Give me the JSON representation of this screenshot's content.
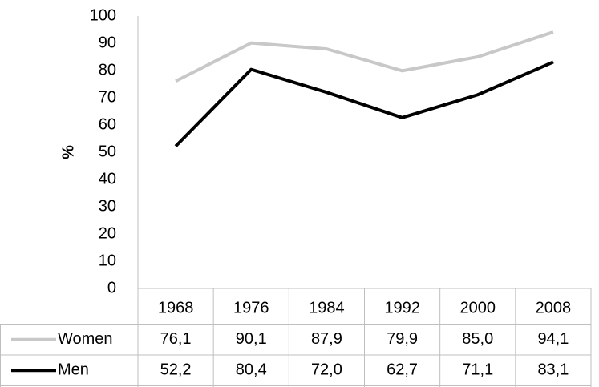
{
  "chart_data": {
    "type": "line",
    "ylabel": "%",
    "categories": [
      "1968",
      "1976",
      "1984",
      "1992",
      "2000",
      "2008"
    ],
    "series": [
      {
        "name": "Women",
        "color": "#c8c8c8",
        "values": [
          76.1,
          90.1,
          87.9,
          79.9,
          85.0,
          94.1
        ],
        "value_labels": [
          "76,1",
          "90,1",
          "87,9",
          "79,9",
          "85,0",
          "94,1"
        ]
      },
      {
        "name": "Men",
        "color": "#000000",
        "values": [
          52.2,
          80.4,
          72.0,
          62.7,
          71.1,
          83.1
        ],
        "value_labels": [
          "52,2",
          "80,4",
          "72,0",
          "62,7",
          "71,1",
          "83,1"
        ]
      }
    ],
    "ylim": [
      0,
      100
    ],
    "yticks": [
      0,
      10,
      20,
      30,
      40,
      50,
      60,
      70,
      80,
      90,
      100
    ],
    "grid": false
  }
}
